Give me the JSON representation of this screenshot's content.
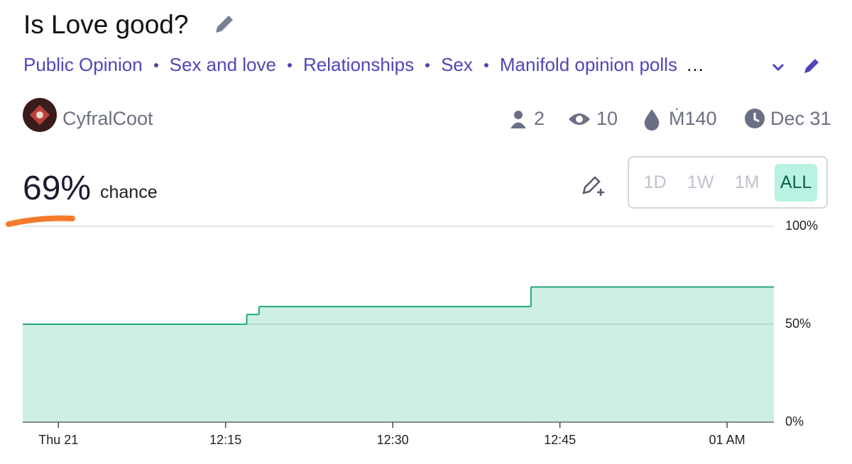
{
  "header": {
    "title": "Is Love good?",
    "tags": [
      "Public Opinion",
      "Sex and love",
      "Relationships",
      "Sex",
      "Manifold opinion polls"
    ],
    "more": "…"
  },
  "author": {
    "name": "CyfralCoot"
  },
  "stats": {
    "traders": 2,
    "views": 10,
    "volume": "Ṁ140",
    "close_date": "Dec 31"
  },
  "probability": {
    "value": "69%",
    "label": "chance"
  },
  "time_buttons": {
    "labels": [
      "1D",
      "1W",
      "1M",
      "ALL"
    ],
    "selected": 3
  },
  "chart_data": {
    "type": "line",
    "step": "after",
    "area": true,
    "color": "#1fa877",
    "fill": "#cdf0e3",
    "x": [
      -3.2,
      16.9,
      18,
      42.4
    ],
    "values": [
      50,
      55,
      59,
      69
    ],
    "xlim": [
      -3.2,
      64.2
    ],
    "ylim": [
      0,
      100
    ],
    "xticks": [
      {
        "value": 0,
        "label": "Thu 21"
      },
      {
        "value": 15,
        "label": "12:15"
      },
      {
        "value": 30,
        "label": "12:30"
      },
      {
        "value": 45,
        "label": "12:45"
      },
      {
        "value": 60,
        "label": "01 AM"
      }
    ],
    "yticks": [
      {
        "value": 0,
        "label": "0%"
      },
      {
        "value": 50,
        "label": "50%"
      },
      {
        "value": 100,
        "label": "100%"
      }
    ],
    "grid": true
  }
}
